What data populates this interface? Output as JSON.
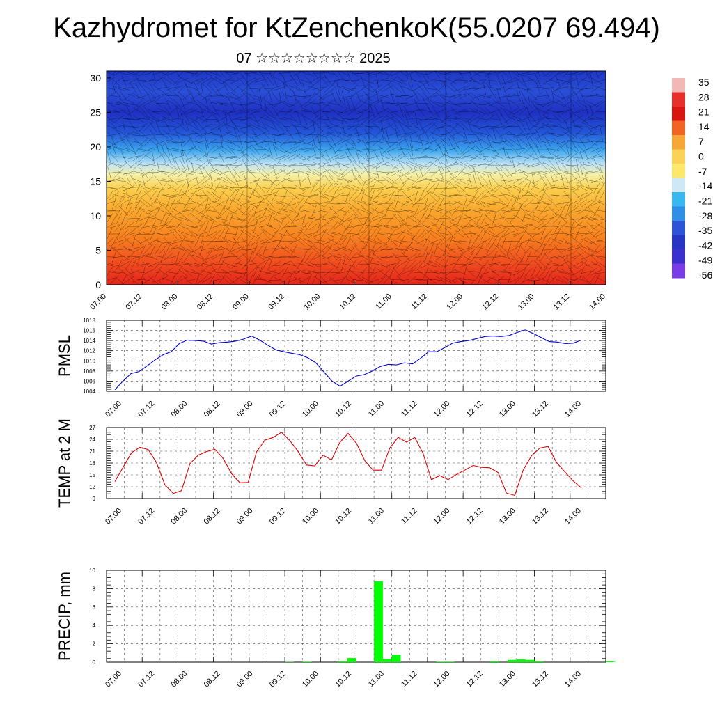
{
  "title": "Kazhydromet for KtZenchenkoK(55.0207 69.494)",
  "subtitle": "07 ☆☆☆☆☆☆☆☆ 2025",
  "time_labels": [
    "07.00",
    "07.12",
    "08.00",
    "08.12",
    "09.00",
    "09.12",
    "10.00",
    "10.12",
    "11.00",
    "11.12",
    "12.00",
    "12.12",
    "13.00",
    "13.12",
    "14.00"
  ],
  "chart_data": [
    {
      "type": "heatmap",
      "name": "upper-air-temperature-wind",
      "y_ticks": [
        "0",
        "5",
        "10",
        "15",
        "20",
        "25",
        "30"
      ],
      "ylim": [
        0,
        31
      ],
      "colorbar": {
        "labels": [
          "35",
          "28",
          "21",
          "14",
          "7",
          "0",
          "-7",
          "-14",
          "-21",
          "-28",
          "-35",
          "-42",
          "-49",
          "-56"
        ],
        "colors": [
          "#f2b8b8",
          "#e8302a",
          "#d8150f",
          "#f26422",
          "#f7a735",
          "#fad257",
          "#fde86c",
          "#cfe8f5",
          "#38b8ef",
          "#2f8ee6",
          "#2b55d6",
          "#2735c4",
          "#3b2fd0",
          "#7a3ce6"
        ]
      },
      "color_stops": [
        {
          "y": 0,
          "color": "#e4241b"
        },
        {
          "y": 3,
          "color": "#f04a1f"
        },
        {
          "y": 7,
          "color": "#f7821f"
        },
        {
          "y": 11,
          "color": "#f9a92f"
        },
        {
          "y": 14,
          "color": "#fbd04f"
        },
        {
          "y": 16,
          "color": "#f4f0a8"
        },
        {
          "y": 17.5,
          "color": "#bfe3f5"
        },
        {
          "y": 19.5,
          "color": "#3da6ee"
        },
        {
          "y": 22,
          "color": "#2356d8"
        },
        {
          "y": 25,
          "color": "#1f30c2"
        },
        {
          "y": 28,
          "color": "#2a4fd8"
        },
        {
          "y": 31,
          "color": "#1e36c4"
        }
      ]
    },
    {
      "type": "line",
      "name": "PMSL",
      "ylabel": "PMSL",
      "ylim": [
        1004,
        1018
      ],
      "y_ticks": [
        "1004",
        "1006",
        "1008",
        "1010",
        "1012",
        "1014",
        "1016",
        "1018"
      ],
      "color": "#0000cc",
      "values": [
        1004.3,
        1006.0,
        1007.5,
        1007.9,
        1009.0,
        1010.2,
        1011.2,
        1011.8,
        1013.4,
        1014.1,
        1014.0,
        1013.9,
        1013.3,
        1013.6,
        1013.7,
        1013.9,
        1014.3,
        1014.9,
        1014.1,
        1013.1,
        1012.2,
        1011.8,
        1011.5,
        1011.2,
        1010.6,
        1009.6,
        1007.8,
        1006.0,
        1005.0,
        1006.0,
        1007.0,
        1007.3,
        1008.0,
        1008.9,
        1009.3,
        1009.2,
        1009.6,
        1009.4,
        1010.5,
        1011.8,
        1011.8,
        1012.6,
        1013.5,
        1013.8,
        1014.0,
        1014.4,
        1014.8,
        1014.9,
        1014.8,
        1015.0,
        1015.6,
        1016.1,
        1015.4,
        1014.6,
        1013.8,
        1013.7,
        1013.4,
        1013.5,
        1014.1
      ]
    },
    {
      "type": "line",
      "name": "TEMP at 2 M",
      "ylabel": "TEMP at 2 M",
      "ylim": [
        9,
        27
      ],
      "y_ticks": [
        "9",
        "12",
        "15",
        "18",
        "21",
        "24",
        "27"
      ],
      "color": "#dd0000",
      "values": [
        13.3,
        17.0,
        20.6,
        22.0,
        21.4,
        18.1,
        12.5,
        10.3,
        11.0,
        17.8,
        20.0,
        20.9,
        21.5,
        19.2,
        15.3,
        13.0,
        13.1,
        20.8,
        23.8,
        24.5,
        25.8,
        23.7,
        20.9,
        17.5,
        17.3,
        20.0,
        18.8,
        23.2,
        25.5,
        23.0,
        18.6,
        16.2,
        16.2,
        21.8,
        24.5,
        23.3,
        24.5,
        20.4,
        13.8,
        14.8,
        13.8,
        15.1,
        16.2,
        17.4,
        16.9,
        16.8,
        15.6,
        10.4,
        9.8,
        16.2,
        19.8,
        21.8,
        22.2,
        18.2,
        15.8,
        13.5,
        11.7
      ]
    },
    {
      "type": "bar",
      "name": "PRECIP, mm",
      "ylabel": "PRECIP, mm",
      "ylim": [
        0,
        10
      ],
      "y_ticks": [
        "0",
        "2",
        "4",
        "6",
        "8",
        "10"
      ],
      "color": "#00ff00",
      "bars": [
        {
          "i": 20,
          "v": 0.03
        },
        {
          "i": 22,
          "v": 0.05
        },
        {
          "i": 26,
          "v": 0.1
        },
        {
          "i": 27,
          "v": 0.45
        },
        {
          "i": 30,
          "v": 8.8
        },
        {
          "i": 31,
          "v": 0.35
        },
        {
          "i": 32,
          "v": 0.8
        },
        {
          "i": 37,
          "v": 0.05
        },
        {
          "i": 38,
          "v": 0.05
        },
        {
          "i": 43,
          "v": 0.1
        },
        {
          "i": 45,
          "v": 0.25
        },
        {
          "i": 46,
          "v": 0.3
        },
        {
          "i": 47,
          "v": 0.25
        },
        {
          "i": 48,
          "v": 0.1
        },
        {
          "i": 56,
          "v": 0.1
        }
      ]
    }
  ]
}
